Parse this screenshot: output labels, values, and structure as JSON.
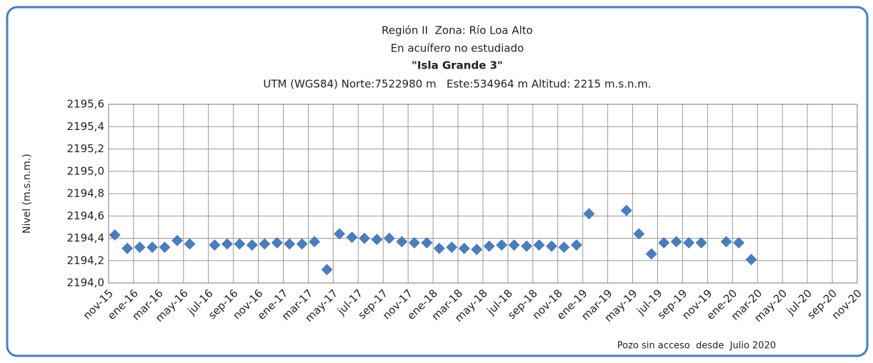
{
  "chart_data": {
    "type": "scatter",
    "title": "Región II  Zona: Río Loa Alto",
    "subtitle": "En acuífero no estudiado",
    "well_name": "\"Isla Grande 3\"",
    "location": "UTM (WGS84) Norte:7522980 m   Este:534964 m Altitud: 2215 m.s.n.m.",
    "y_label": "Nivel (m.s.n.m.)",
    "annotation": "Pozo sin acceso  desde  Julio 2020",
    "categories": [
      "nov-15",
      null,
      "ene-16",
      null,
      "mar-16",
      null,
      "may-16",
      null,
      "jul-16",
      null,
      "sep-16",
      null,
      "nov-16",
      null,
      "ene-17",
      null,
      "mar-17",
      null,
      "may-17",
      null,
      "jul-17",
      null,
      "sep-17",
      null,
      "nov-17",
      null,
      "ene-18",
      null,
      "mar-18",
      null,
      "may-18",
      null,
      "jul-18",
      null,
      "sep-18",
      null,
      "nov-18",
      null,
      "ene-19",
      null,
      "mar-19",
      null,
      "may-19",
      null,
      "jul-19",
      null,
      "sep-19",
      null,
      "nov-19",
      null,
      "ene-20",
      null,
      "mar-20",
      null,
      "may-20",
      null,
      "jul-20",
      null,
      "sep-20",
      null,
      "nov-20"
    ],
    "values": [
      2194.43,
      2194.31,
      2194.32,
      2194.32,
      2194.32,
      2194.38,
      2194.35,
      null,
      2194.34,
      2194.35,
      2194.35,
      2194.34,
      2194.35,
      2194.36,
      2194.35,
      2194.35,
      2194.37,
      2194.12,
      2194.44,
      2194.41,
      2194.4,
      2194.39,
      2194.4,
      2194.37,
      2194.36,
      2194.36,
      2194.31,
      2194.32,
      2194.31,
      2194.3,
      2194.33,
      2194.34,
      2194.34,
      2194.33,
      2194.34,
      2194.33,
      2194.32,
      2194.34,
      2194.62,
      null,
      null,
      2194.65,
      2194.44,
      2194.26,
      2194.36,
      2194.37,
      2194.36,
      2194.36,
      null,
      2194.37,
      2194.36,
      2194.21,
      null,
      null,
      null,
      null,
      null,
      null,
      null,
      null,
      null
    ],
    "color": "#4a7ebb",
    "ylim": [
      2194.0,
      2195.6
    ],
    "yticks": [
      {
        "value": 2194.0,
        "label": "2194,0"
      },
      {
        "value": 2194.2,
        "label": "2194,2"
      },
      {
        "value": 2194.4,
        "label": "2194,4"
      },
      {
        "value": 2194.6,
        "label": "2194,6"
      },
      {
        "value": 2194.8,
        "label": "2194,8"
      },
      {
        "value": 2195.0,
        "label": "2195,0"
      },
      {
        "value": 2195.2,
        "label": "2195,2"
      },
      {
        "value": 2195.4,
        "label": "2195,4"
      },
      {
        "value": 2195.6,
        "label": "2195,6"
      }
    ],
    "grid": true
  }
}
